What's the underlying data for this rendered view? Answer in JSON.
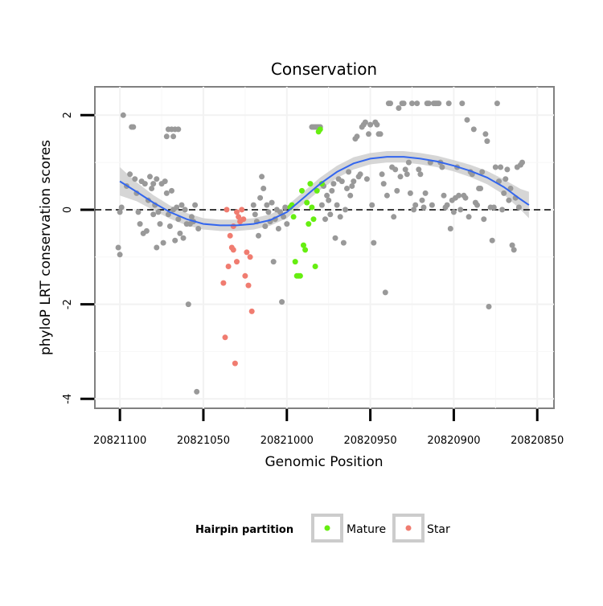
{
  "chart_data": {
    "type": "scatter",
    "title": "Conservation",
    "xlabel": "Genomic Position",
    "ylabel": "phyloP LRT conservation scores",
    "x_reversed": true,
    "xlim": [
      20821115,
      20820840
    ],
    "ylim": [
      -4.2,
      2.6
    ],
    "x_ticks": [
      20821100,
      20821050,
      20821000,
      20820950,
      20820900,
      20820850
    ],
    "x_tick_labels": [
      "20821100",
      "20821050",
      "20821000",
      "20820950",
      "20820900",
      "20820850"
    ],
    "y_ticks": [
      -4,
      -2,
      0,
      2
    ],
    "y_tick_labels": [
      "-4",
      "-2",
      "0",
      "2"
    ],
    "reference_line_y": 0,
    "grid": true,
    "legend": {
      "title": "Hairpin partition",
      "position": "bottom",
      "entries": [
        {
          "label": "Mature",
          "color": "#66ee11"
        },
        {
          "label": "Star",
          "color": "#f07c70"
        }
      ]
    },
    "colors": {
      "other": "#999999",
      "Mature": "#66ee11",
      "Star": "#f07c70",
      "smooth": "#3366ee",
      "ribbon": "#cfcfcf"
    },
    "series": [
      {
        "name": "Other",
        "color": "#999999",
        "points": [
          [
            20821098,
            2.0
          ],
          [
            20821093,
            1.75
          ],
          [
            20821092,
            1.75
          ],
          [
            20821071,
            1.7
          ],
          [
            20821069,
            1.7
          ],
          [
            20821067,
            1.7
          ],
          [
            20821065,
            1.7
          ],
          [
            20821072,
            1.55
          ],
          [
            20821068,
            1.55
          ],
          [
            20821099,
            0.05
          ],
          [
            20821100,
            -0.05
          ],
          [
            20821096,
            0.5
          ],
          [
            20821094,
            0.75
          ],
          [
            20821091,
            0.65
          ],
          [
            20821090,
            0.35
          ],
          [
            20821089,
            -0.05
          ],
          [
            20821088,
            -0.3
          ],
          [
            20821087,
            0.6
          ],
          [
            20821086,
            -0.5
          ],
          [
            20821085,
            0.55
          ],
          [
            20821084,
            -0.45
          ],
          [
            20821083,
            0.2
          ],
          [
            20821082,
            0.7
          ],
          [
            20821081,
            0.45
          ],
          [
            20821080,
            -0.1
          ],
          [
            20821079,
            0.1
          ],
          [
            20821078,
            -0.8
          ],
          [
            20821077,
            -0.05
          ],
          [
            20821076,
            -0.3
          ],
          [
            20821075,
            0.55
          ],
          [
            20821074,
            -0.7
          ],
          [
            20821073,
            0.6
          ],
          [
            20821072,
            0.35
          ],
          [
            20821071,
            -0.1
          ],
          [
            20821070,
            -0.35
          ],
          [
            20821069,
            0.4
          ],
          [
            20821068,
            0.0
          ],
          [
            20821067,
            -0.65
          ],
          [
            20821066,
            0.05
          ],
          [
            20821065,
            -0.2
          ],
          [
            20821064,
            -0.5
          ],
          [
            20821063,
            0.1
          ],
          [
            20821062,
            -0.6
          ],
          [
            20821061,
            0.0
          ],
          [
            20821060,
            -0.3
          ],
          [
            20821059,
            -2.0
          ],
          [
            20821058,
            -0.3
          ],
          [
            20821057,
            -0.15
          ],
          [
            20821056,
            -0.25
          ],
          [
            20821055,
            0.1
          ],
          [
            20821054,
            -3.85
          ],
          [
            20821053,
            -0.4
          ],
          [
            20821101,
            -0.8
          ],
          [
            20821100,
            -0.95
          ],
          [
            20821080,
            0.55
          ],
          [
            20821078,
            0.65
          ],
          [
            20821020,
            0.1
          ],
          [
            20821019,
            -0.1
          ],
          [
            20821018,
            -0.25
          ],
          [
            20821017,
            -0.55
          ],
          [
            20821016,
            0.25
          ],
          [
            20821015,
            0.7
          ],
          [
            20821014,
            0.45
          ],
          [
            20821013,
            -0.35
          ],
          [
            20821012,
            0.1
          ],
          [
            20821011,
            -0.05
          ],
          [
            20821010,
            -0.25
          ],
          [
            20821009,
            0.15
          ],
          [
            20821008,
            -1.1
          ],
          [
            20821007,
            -0.2
          ],
          [
            20821006,
            0.0
          ],
          [
            20821005,
            -0.4
          ],
          [
            20821004,
            -0.05
          ],
          [
            20821003,
            -1.95
          ],
          [
            20821002,
            -0.15
          ],
          [
            20821001,
            0.05
          ],
          [
            20821000,
            -0.3
          ],
          [
            20820985,
            1.75
          ],
          [
            20820984,
            1.75
          ],
          [
            20820983,
            1.75
          ],
          [
            20820982,
            1.75
          ],
          [
            20820981,
            1.75
          ],
          [
            20820980,
            1.75
          ],
          [
            20820979,
            0.1
          ],
          [
            20820978,
            0.5
          ],
          [
            20820977,
            -0.2
          ],
          [
            20820976,
            0.3
          ],
          [
            20820975,
            0.2
          ],
          [
            20820974,
            -0.1
          ],
          [
            20820973,
            0.4
          ],
          [
            20820972,
            0.55
          ],
          [
            20820971,
            -0.6
          ],
          [
            20820970,
            0.1
          ],
          [
            20820969,
            0.65
          ],
          [
            20820968,
            -0.15
          ],
          [
            20820967,
            0.6
          ],
          [
            20820966,
            -0.7
          ],
          [
            20820965,
            0.0
          ],
          [
            20820964,
            0.45
          ],
          [
            20820963,
            0.8
          ],
          [
            20820962,
            0.3
          ],
          [
            20820961,
            0.5
          ],
          [
            20820960,
            0.6
          ],
          [
            20820959,
            1.5
          ],
          [
            20820958,
            1.55
          ],
          [
            20820957,
            0.7
          ],
          [
            20820956,
            0.75
          ],
          [
            20820955,
            1.75
          ],
          [
            20820954,
            1.8
          ],
          [
            20820953,
            1.85
          ],
          [
            20820952,
            0.65
          ],
          [
            20820951,
            1.6
          ],
          [
            20820950,
            1.8
          ],
          [
            20820949,
            0.1
          ],
          [
            20820948,
            -0.7
          ],
          [
            20820947,
            1.85
          ],
          [
            20820946,
            1.8
          ],
          [
            20820945,
            1.6
          ],
          [
            20820944,
            1.6
          ],
          [
            20820943,
            0.75
          ],
          [
            20820942,
            0.55
          ],
          [
            20820941,
            -1.75
          ],
          [
            20820940,
            0.3
          ],
          [
            20820939,
            2.25
          ],
          [
            20820938,
            2.25
          ],
          [
            20820937,
            0.9
          ],
          [
            20820936,
            -0.15
          ],
          [
            20820935,
            0.85
          ],
          [
            20820934,
            0.4
          ],
          [
            20820933,
            2.15
          ],
          [
            20820932,
            0.7
          ],
          [
            20820931,
            2.25
          ],
          [
            20820930,
            2.25
          ],
          [
            20820929,
            0.85
          ],
          [
            20820928,
            0.75
          ],
          [
            20820927,
            1.0
          ],
          [
            20820926,
            0.35
          ],
          [
            20820925,
            2.25
          ],
          [
            20820924,
            0.0
          ],
          [
            20820923,
            0.1
          ],
          [
            20820922,
            2.25
          ],
          [
            20820921,
            0.85
          ],
          [
            20820920,
            0.75
          ],
          [
            20820919,
            0.2
          ],
          [
            20820918,
            0.05
          ],
          [
            20820917,
            0.35
          ],
          [
            20820916,
            2.25
          ],
          [
            20820915,
            2.25
          ],
          [
            20820914,
            1.0
          ],
          [
            20820913,
            0.1
          ],
          [
            20820912,
            2.25
          ],
          [
            20820911,
            2.25
          ],
          [
            20820910,
            2.25
          ],
          [
            20820909,
            2.25
          ],
          [
            20820908,
            1.0
          ],
          [
            20820907,
            0.9
          ],
          [
            20820906,
            0.3
          ],
          [
            20820905,
            0.05
          ],
          [
            20820904,
            0.1
          ],
          [
            20820903,
            2.25
          ],
          [
            20820902,
            -0.4
          ],
          [
            20820901,
            0.2
          ],
          [
            20820900,
            -0.05
          ],
          [
            20820899,
            0.25
          ],
          [
            20820898,
            0.9
          ],
          [
            20820897,
            0.3
          ],
          [
            20820896,
            0.0
          ],
          [
            20820895,
            2.25
          ],
          [
            20820894,
            0.3
          ],
          [
            20820893,
            0.25
          ],
          [
            20820892,
            1.9
          ],
          [
            20820891,
            -0.15
          ],
          [
            20820890,
            0.8
          ],
          [
            20820889,
            0.75
          ],
          [
            20820888,
            1.7
          ],
          [
            20820887,
            0.15
          ],
          [
            20820886,
            0.1
          ],
          [
            20820885,
            0.45
          ],
          [
            20820884,
            0.45
          ],
          [
            20820883,
            0.8
          ],
          [
            20820882,
            -0.2
          ],
          [
            20820881,
            1.6
          ],
          [
            20820880,
            1.45
          ],
          [
            20820879,
            -2.05
          ],
          [
            20820878,
            0.05
          ],
          [
            20820877,
            -0.65
          ],
          [
            20820876,
            0.05
          ],
          [
            20820875,
            0.9
          ],
          [
            20820874,
            2.25
          ],
          [
            20820873,
            0.6
          ],
          [
            20820872,
            0.9
          ],
          [
            20820871,
            0.0
          ],
          [
            20820870,
            0.35
          ],
          [
            20820869,
            0.65
          ],
          [
            20820868,
            0.85
          ],
          [
            20820867,
            0.2
          ],
          [
            20820866,
            0.45
          ],
          [
            20820865,
            -0.75
          ],
          [
            20820864,
            -0.85
          ],
          [
            20820863,
            0.25
          ],
          [
            20820862,
            0.9
          ],
          [
            20820861,
            0.05
          ],
          [
            20820860,
            0.95
          ],
          [
            20820859,
            1.0
          ]
        ]
      },
      {
        "name": "Mature",
        "color": "#66ee11",
        "points": [
          [
            20820998,
            0.05
          ],
          [
            20820997,
            0.1
          ],
          [
            20820996,
            -0.15
          ],
          [
            20820995,
            -1.1
          ],
          [
            20820994,
            -1.4
          ],
          [
            20820993,
            -1.4
          ],
          [
            20820992,
            -1.4
          ],
          [
            20820991,
            0.4
          ],
          [
            20820990,
            -0.75
          ],
          [
            20820989,
            -0.85
          ],
          [
            20820988,
            0.15
          ],
          [
            20820987,
            -0.3
          ],
          [
            20820986,
            0.55
          ],
          [
            20820985,
            0.05
          ],
          [
            20820984,
            -0.2
          ],
          [
            20820983,
            -1.2
          ],
          [
            20820982,
            0.4
          ],
          [
            20820981,
            1.65
          ],
          [
            20820980,
            1.7
          ],
          [
            20820979,
            0.55
          ]
        ]
      },
      {
        "name": "Star",
        "color": "#f07c70",
        "points": [
          [
            20821036,
            0.0
          ],
          [
            20821035,
            -1.2
          ],
          [
            20821034,
            -0.55
          ],
          [
            20821033,
            -0.8
          ],
          [
            20821032,
            -0.85
          ],
          [
            20821031,
            -3.25
          ],
          [
            20821030,
            -1.1
          ],
          [
            20821029,
            -0.15
          ],
          [
            20821028,
            -0.25
          ],
          [
            20821027,
            0.0
          ],
          [
            20821026,
            -0.2
          ],
          [
            20821025,
            -1.4
          ],
          [
            20821024,
            -0.9
          ],
          [
            20821023,
            -1.6
          ],
          [
            20821022,
            -1.0
          ],
          [
            20821021,
            -2.15
          ],
          [
            20821037,
            -2.7
          ],
          [
            20821038,
            -1.55
          ],
          [
            20821032,
            -0.35
          ],
          [
            20821030,
            -0.05
          ]
        ]
      }
    ],
    "smooth_curve": [
      [
        20821100,
        0.6
      ],
      [
        20821090,
        0.38
      ],
      [
        20821080,
        0.15
      ],
      [
        20821070,
        -0.05
      ],
      [
        20821060,
        -0.2
      ],
      [
        20821050,
        -0.3
      ],
      [
        20821040,
        -0.33
      ],
      [
        20821030,
        -0.33
      ],
      [
        20821020,
        -0.3
      ],
      [
        20821010,
        -0.22
      ],
      [
        20821000,
        -0.05
      ],
      [
        20820990,
        0.25
      ],
      [
        20820980,
        0.55
      ],
      [
        20820970,
        0.8
      ],
      [
        20820960,
        0.98
      ],
      [
        20820950,
        1.08
      ],
      [
        20820940,
        1.12
      ],
      [
        20820930,
        1.12
      ],
      [
        20820920,
        1.08
      ],
      [
        20820910,
        1.02
      ],
      [
        20820900,
        0.93
      ],
      [
        20820890,
        0.82
      ],
      [
        20820880,
        0.68
      ],
      [
        20820870,
        0.48
      ],
      [
        20820860,
        0.22
      ],
      [
        20820855,
        0.1
      ]
    ],
    "ribbon_halfwidth": [
      0.3,
      0.2,
      0.16,
      0.14,
      0.13,
      0.12,
      0.12,
      0.12,
      0.12,
      0.12,
      0.13,
      0.13,
      0.13,
      0.13,
      0.13,
      0.12,
      0.12,
      0.12,
      0.12,
      0.12,
      0.12,
      0.13,
      0.14,
      0.16,
      0.22,
      0.28
    ]
  }
}
